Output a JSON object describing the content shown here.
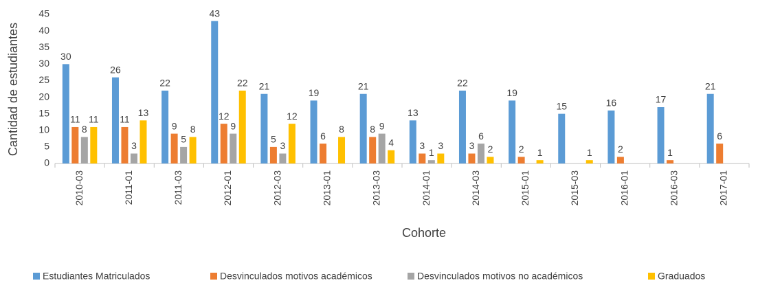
{
  "chart_data": {
    "type": "bar",
    "x_label": "Cohorte",
    "y_label": "Cantidad de estudiantes",
    "categories": [
      "2010-03",
      "2011-01",
      "2011-03",
      "2012-01",
      "2012-03",
      "2013-01",
      "2013-03",
      "2014-01",
      "2014-03",
      "2015-01",
      "2015-03",
      "2016-01",
      "2016-03",
      "2017-01"
    ],
    "series": [
      {
        "name": "Estudiantes Matriculados",
        "color": "#5b9bd5",
        "values": [
          30,
          26,
          22,
          43,
          21,
          19,
          21,
          13,
          22,
          19,
          15,
          16,
          17,
          21
        ]
      },
      {
        "name": "Desvinculados motivos académicos",
        "color": "#ed7d31",
        "values": [
          11,
          11,
          9,
          12,
          5,
          6,
          8,
          3,
          3,
          2,
          null,
          2,
          1,
          6
        ]
      },
      {
        "name": "Desvinculados motivos no académicos",
        "color": "#a5a5a5",
        "values": [
          8,
          3,
          5,
          9,
          3,
          null,
          9,
          1,
          6,
          null,
          null,
          null,
          null,
          null
        ]
      },
      {
        "name": "Graduados",
        "color": "#ffc000",
        "values": [
          11,
          13,
          8,
          22,
          12,
          8,
          4,
          3,
          2,
          1,
          1,
          null,
          null,
          null
        ]
      }
    ],
    "ylim": [
      0,
      45
    ],
    "yticks": [
      0,
      5,
      10,
      15,
      20,
      25,
      30,
      35,
      40,
      45
    ],
    "grid": false,
    "legend": "bottom"
  }
}
